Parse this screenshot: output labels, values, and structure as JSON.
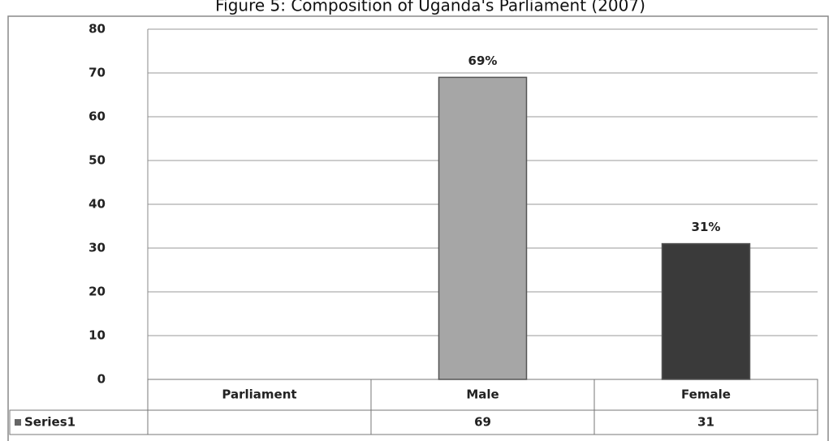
{
  "chart_data": {
    "type": "bar",
    "title": "Figure 5: Composition of Uganda's Parliament (2007)",
    "categories": [
      "Parliament",
      "Male",
      "Female"
    ],
    "series": [
      {
        "name": "Series1",
        "colors": [
          null,
          "#a6a6a6",
          "#3a3a3a"
        ],
        "values": [
          null,
          69,
          31
        ],
        "value_labels": [
          null,
          "69%",
          "31%"
        ]
      }
    ],
    "ylim": [
      0,
      80
    ],
    "yticks": [
      0,
      10,
      20,
      30,
      40,
      50,
      60,
      70,
      80
    ],
    "grid": true
  }
}
